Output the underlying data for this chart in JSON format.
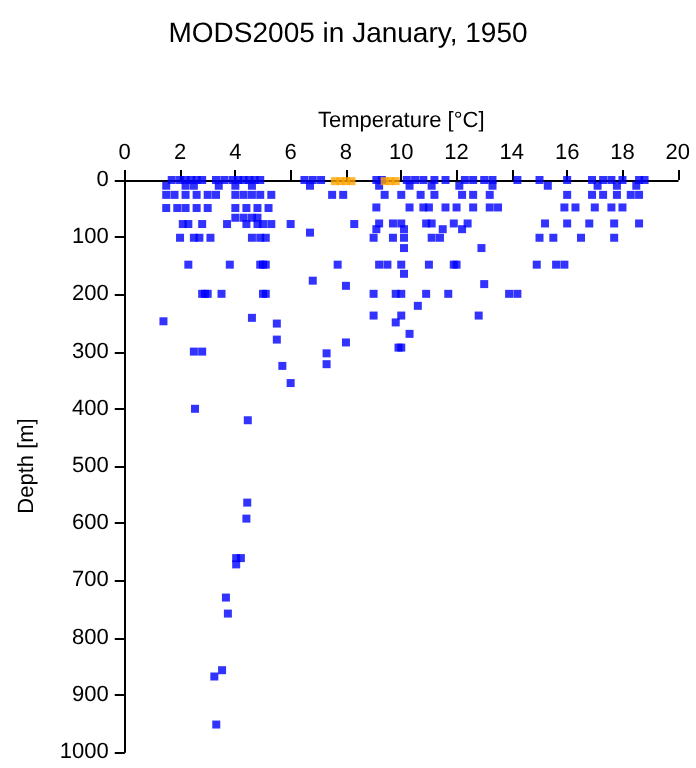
{
  "chart_data": {
    "type": "scatter",
    "title": "MODS2005 in January, 1950",
    "xlabel": "Temperature [°C]",
    "ylabel": "Depth [m]",
    "xlim": [
      0,
      20
    ],
    "xticks": [
      0,
      2,
      4,
      6,
      8,
      10,
      12,
      14,
      16,
      18,
      20
    ],
    "ylim": [
      1000,
      0
    ],
    "yticks": [
      0,
      100,
      200,
      300,
      400,
      500,
      600,
      700,
      800,
      900,
      1000
    ],
    "grid": false,
    "marker": "square",
    "series": [
      {
        "color": "#0000ff",
        "x": [
          1.7,
          2.0,
          2.2,
          2.4,
          2.6,
          2.8,
          3.3,
          3.6,
          3.9,
          4.1,
          4.3,
          4.5,
          4.7,
          4.9,
          6.5,
          6.8,
          7.1,
          9.1,
          9.3,
          10.2,
          10.5,
          10.8,
          11.2,
          11.6,
          12.3,
          12.6,
          13.0,
          13.3,
          14.2,
          15.0,
          16.0,
          16.9,
          17.3,
          17.6,
          18.0,
          18.6,
          18.8,
          1.5,
          2.2,
          2.5,
          3.4,
          4.0,
          4.6,
          6.7,
          9.2,
          10.3,
          11.1,
          12.1,
          13.3,
          15.3,
          17.1,
          17.8,
          18.5,
          1.5,
          1.8,
          2.2,
          2.6,
          3.0,
          3.3,
          4.0,
          4.3,
          4.6,
          4.9,
          5.3,
          7.5,
          7.9,
          9.4,
          10.0,
          10.7,
          11.2,
          12.2,
          12.6,
          13.2,
          16.0,
          16.9,
          17.3,
          17.8,
          18.3,
          18.6,
          1.5,
          1.9,
          2.2,
          2.6,
          3.0,
          4.0,
          4.4,
          4.8,
          5.2,
          9.1,
          10.3,
          10.8,
          11.0,
          11.6,
          12.0,
          12.6,
          13.2,
          13.5,
          15.9,
          16.3,
          17.0,
          17.6,
          18.0,
          4.0,
          4.3,
          4.6,
          4.8,
          2.1,
          2.3,
          2.8,
          3.7,
          4.4,
          4.8,
          5.0,
          5.3,
          6.0,
          8.3,
          9.2,
          9.7,
          10.0,
          10.9,
          11.1,
          11.9,
          12.4,
          15.2,
          16.0,
          16.8,
          17.7,
          18.6,
          9.1,
          10.1,
          11.5,
          12.2,
          6.7,
          2.0,
          2.5,
          2.7,
          3.1,
          4.6,
          4.9,
          5.1,
          9.0,
          9.7,
          10.1,
          11.1,
          11.4,
          15.0,
          15.5,
          16.5,
          17.7,
          10.1,
          12.9,
          2.3,
          3.8,
          4.9,
          5.0,
          5.1,
          7.7,
          9.2,
          9.5,
          10.0,
          11.0,
          11.9,
          12.0,
          14.9,
          15.6,
          15.9,
          10.1,
          6.8,
          8.0,
          13.0,
          2.8,
          2.9,
          3.0,
          3.5,
          5.0,
          5.1,
          9.0,
          9.8,
          10.0,
          10.9,
          11.7,
          13.9,
          14.2,
          10.6,
          9.0,
          10.0,
          12.8,
          4.6,
          1.4,
          5.5,
          9.8,
          10.3,
          5.5,
          8.0,
          9.9,
          10.0,
          2.5,
          2.8,
          7.3,
          7.3,
          5.7,
          6.0,
          2.54,
          4.45,
          4.43,
          4.4,
          4.03,
          4.2,
          4.03,
          3.66,
          3.73,
          3.52,
          3.24,
          3.31
        ],
        "values": [
          0,
          0,
          0,
          0,
          0,
          0,
          0,
          0,
          0,
          0,
          0,
          0,
          0,
          0,
          0,
          0,
          0,
          0,
          0,
          0,
          0,
          0,
          0,
          0,
          0,
          0,
          0,
          0,
          0,
          0,
          0,
          0,
          0,
          0,
          0,
          0,
          0,
          10,
          10,
          10,
          10,
          10,
          10,
          10,
          10,
          10,
          10,
          10,
          10,
          10,
          10,
          10,
          10,
          26,
          26,
          26,
          26,
          26,
          26,
          26,
          26,
          26,
          26,
          26,
          26,
          26,
          26,
          26,
          26,
          26,
          26,
          26,
          26,
          26,
          26,
          26,
          26,
          26,
          26,
          49,
          49,
          49,
          49,
          49,
          49,
          49,
          49,
          49,
          48,
          48,
          48,
          48,
          48,
          48,
          48,
          48,
          48,
          48,
          48,
          48,
          48,
          48,
          66,
          66,
          66,
          66,
          77,
          77,
          77,
          77,
          77,
          77,
          77,
          77,
          77,
          77,
          76,
          76,
          76,
          76,
          76,
          76,
          76,
          76,
          76,
          76,
          76,
          76,
          86,
          86,
          86,
          86,
          92,
          101,
          101,
          101,
          101,
          101,
          101,
          101,
          101,
          101,
          101,
          101,
          101,
          101,
          101,
          101,
          101,
          119,
          119,
          148,
          148,
          148,
          148,
          148,
          148,
          148,
          148,
          148,
          148,
          148,
          148,
          148,
          148,
          148,
          164,
          176,
          185,
          182,
          199,
          199,
          199,
          199,
          199,
          199,
          199,
          199,
          199,
          199,
          199,
          199,
          199,
          220,
          237,
          237,
          237,
          241,
          247,
          251,
          249,
          269,
          279,
          284,
          293,
          293,
          300,
          300,
          303,
          322,
          325,
          355,
          400,
          420,
          564,
          592,
          661,
          661,
          672,
          730,
          758,
          857,
          868,
          952
        ]
      },
      {
        "color": "#ffa500",
        "x": [
          7.6,
          7.8,
          8.0,
          8.2,
          9.4,
          9.6,
          9.8
        ],
        "values": [
          2,
          2,
          2,
          2,
          2,
          2,
          2
        ]
      }
    ]
  }
}
